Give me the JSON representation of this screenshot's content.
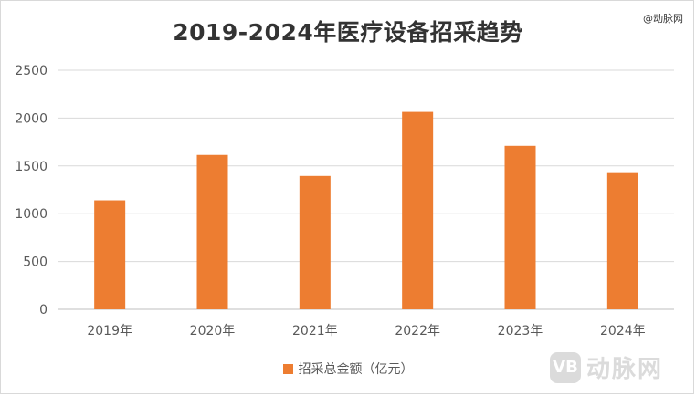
{
  "watermark_top": "@动脉网",
  "logo": {
    "badge": "VB",
    "text": "动脉网"
  },
  "chart_data": {
    "type": "bar",
    "title": "2019-2024年医疗设备招采趋势",
    "categories": [
      "2019年",
      "2020年",
      "2021年",
      "2022年",
      "2023年",
      "2024年"
    ],
    "series": [
      {
        "name": "招采总金额（亿元）",
        "values": [
          1140,
          1615,
          1395,
          2065,
          1710,
          1425
        ],
        "color": "#ED7D31"
      }
    ],
    "ylim": [
      0,
      2500
    ],
    "yticks": [
      0,
      500,
      1000,
      1500,
      2000,
      2500
    ],
    "grid": true,
    "legend_position": "bottom",
    "xlabel": "",
    "ylabel": ""
  }
}
